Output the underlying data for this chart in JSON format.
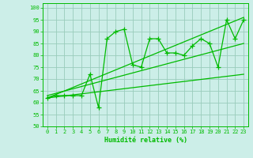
{
  "xlabel": "Humidité relative (%)",
  "bg_color": "#cceee8",
  "grid_color": "#99ccbb",
  "line_color": "#00bb00",
  "xlim": [
    -0.5,
    23.5
  ],
  "ylim": [
    50,
    102
  ],
  "yticks": [
    50,
    55,
    60,
    65,
    70,
    75,
    80,
    85,
    90,
    95,
    100
  ],
  "xticks": [
    0,
    1,
    2,
    3,
    4,
    5,
    6,
    7,
    8,
    9,
    10,
    11,
    12,
    13,
    14,
    15,
    16,
    17,
    18,
    19,
    20,
    21,
    22,
    23
  ],
  "scatter_x": [
    0,
    1,
    2,
    3,
    4,
    5,
    6,
    7,
    8,
    9,
    10,
    11,
    12,
    13,
    14,
    15,
    16,
    17,
    18,
    19,
    20,
    21,
    22,
    23
  ],
  "scatter_y": [
    62,
    63,
    63,
    63,
    63,
    72,
    58,
    87,
    90,
    91,
    76,
    75,
    87,
    87,
    81,
    81,
    80,
    84,
    87,
    85,
    75,
    95,
    87,
    95
  ],
  "line1_x": [
    0,
    23
  ],
  "line1_y": [
    62,
    96
  ],
  "line2_x": [
    0,
    23
  ],
  "line2_y": [
    62,
    72
  ],
  "line3_x": [
    0,
    23
  ],
  "line3_y": [
    63,
    85
  ]
}
